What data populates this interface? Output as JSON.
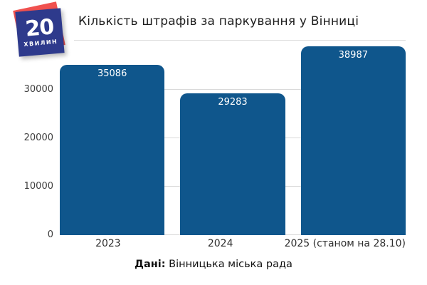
{
  "brand": {
    "logo_number": "20",
    "logo_word": "ХВИЛИН",
    "logo_blue": "#2e3a8c",
    "logo_red": "#f0514f"
  },
  "header": {
    "title": "Кількість штрафів за паркування у Вінниці"
  },
  "chart_data": {
    "type": "bar",
    "categories": [
      "2023",
      "2024",
      "2025 (станом на 28.10)"
    ],
    "values": [
      35086,
      29283,
      38987
    ],
    "title": "Кількість штрафів за паркування у Вінниці",
    "xlabel": "",
    "ylabel": "",
    "ylim": [
      0,
      40000
    ],
    "yticks": [
      0,
      10000,
      20000,
      30000
    ],
    "grid": true,
    "legend": false,
    "bar_color": "#0f568c",
    "value_label_color": "#ffffff",
    "gridline_color": "#d9d9d9"
  },
  "footer": {
    "label": "Дані:",
    "text": " Вінницька міська рада"
  }
}
